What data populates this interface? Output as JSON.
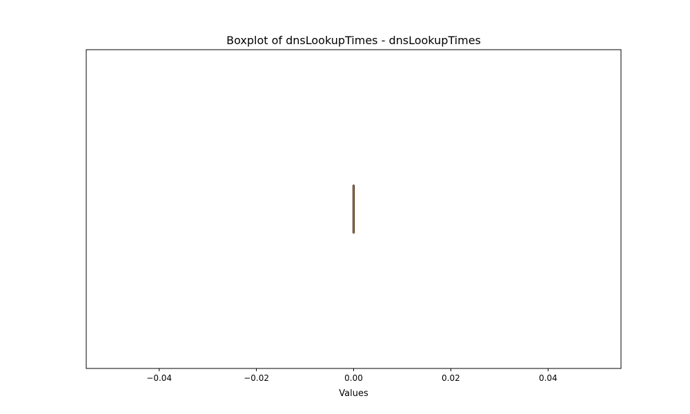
{
  "chart_data": {
    "type": "boxplot",
    "orientation": "horizontal",
    "title": "Boxplot of dnsLookupTimes - dnsLookupTimes",
    "xlabel": "Values",
    "ylabel": "",
    "xlim": [
      -0.055,
      0.055
    ],
    "xticks": [
      -0.04,
      -0.02,
      0.0,
      0.02,
      0.04
    ],
    "xtick_labels": [
      "−0.04",
      "−0.02",
      "0.00",
      "0.02",
      "0.04"
    ],
    "grid": false,
    "series": [
      {
        "name": "dnsLookupTimes",
        "min": 0.0,
        "q1": 0.0,
        "median": 0.0,
        "q3": 0.0,
        "max": 0.0
      }
    ],
    "colors": {
      "box": "#000000",
      "median": "#ff7f0e",
      "frame": "#000000"
    }
  }
}
